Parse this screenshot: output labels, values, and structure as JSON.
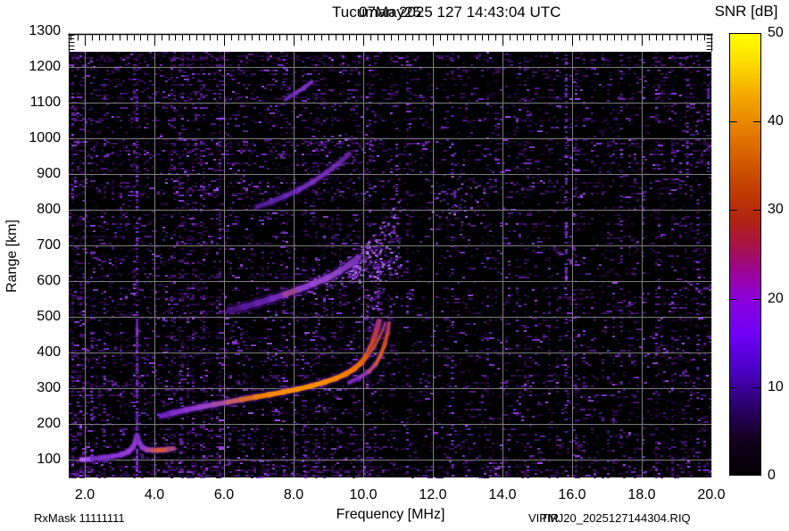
{
  "footer": {
    "left": "RxMask 11111111",
    "right_program": "VIPIR",
    "right_file": "TMJ20_2025127144304.RIQ"
  },
  "chart_data": {
    "type": "heatmap",
    "description": "VIPIR ionosonde ionogram: echo power (SNR dB) vs sounding frequency and virtual range",
    "title": {
      "main": "Tucuman 2025 127 14:43:04 UTC",
      "date": "07May25"
    },
    "station": "Tucuman",
    "timestamp_utc": "2025 127 14:43:04 UTC",
    "date_label": "07May25",
    "xlabel": "Frequency [MHz]",
    "ylabel": "Range [km]",
    "x_axis": {
      "unit": "MHz",
      "min": 1.54,
      "max": 20.03,
      "minor_step": 0.2,
      "tick_values": [
        2,
        4,
        6,
        8,
        10,
        12,
        14,
        16,
        18,
        20
      ],
      "tick_labels": [
        "2.0",
        "4.0",
        "6.0",
        "8.0",
        "10.0",
        "12.0",
        "14.0",
        "16.0",
        "18.0",
        "20.0"
      ]
    },
    "y_axis": {
      "unit": "km",
      "min": 50,
      "max": 1310,
      "minor_step": 10,
      "tick_values": [
        100,
        200,
        300,
        400,
        500,
        600,
        700,
        800,
        900,
        1000,
        1100,
        1200,
        1300
      ],
      "tick_labels": [
        "100",
        "200",
        "300",
        "400",
        "500",
        "600",
        "700",
        "800",
        "900",
        "1000",
        "1100",
        "1200",
        "1300"
      ]
    },
    "grid": {
      "x_step_mhz": 2,
      "y_step_km": 100,
      "color": "#7d7d7d"
    },
    "background": {
      "plot_bg": "#000000",
      "noise_style": "purple speckle, denser below 6 MHz and at left edge"
    },
    "colorbar": {
      "title": "SNR [dB]",
      "min": 0,
      "max": 50,
      "tick_values": [
        0,
        10,
        20,
        30,
        40,
        50
      ],
      "tick_labels": [
        "0",
        "10",
        "20",
        "30",
        "40",
        "50"
      ],
      "stops": [
        [
          0.0,
          "#000000"
        ],
        [
          0.08,
          "#12001f"
        ],
        [
          0.16,
          "#2d0070"
        ],
        [
          0.24,
          "#4c00c8"
        ],
        [
          0.32,
          "#6f00f4"
        ],
        [
          0.4,
          "#8c00d8"
        ],
        [
          0.46,
          "#9a0496"
        ],
        [
          0.52,
          "#a71347"
        ],
        [
          0.58,
          "#b22410"
        ],
        [
          0.66,
          "#c34300"
        ],
        [
          0.76,
          "#e07200"
        ],
        [
          0.86,
          "#f4a800"
        ],
        [
          0.94,
          "#fde000"
        ],
        [
          1.0,
          "#ffff00"
        ]
      ]
    },
    "traces": [
      {
        "name": "E-Es-trace-first-hop",
        "width": 4,
        "alpha": 1,
        "glow": 5,
        "points": [
          [
            1.92,
            100
          ],
          [
            2.2,
            102
          ],
          [
            2.5,
            105
          ],
          [
            2.8,
            109
          ],
          [
            3.05,
            114
          ],
          [
            3.25,
            122
          ],
          [
            3.38,
            134
          ],
          [
            3.46,
            152
          ],
          [
            3.5,
            166
          ],
          [
            3.56,
            148
          ],
          [
            3.66,
            134
          ],
          [
            3.78,
            128
          ],
          [
            3.95,
            126
          ],
          [
            4.1,
            126
          ],
          [
            4.25,
            127
          ],
          [
            4.4,
            129
          ],
          [
            4.55,
            131
          ]
        ],
        "colors": [
          "#a050e8",
          "#7a2cc8",
          "#8030cc",
          "#8834d0",
          "#9038d4",
          "#943ad4",
          "#8c36cc",
          "#8032c0",
          "#7a30b8",
          "#8436c4",
          "#9038d0",
          "#a8449c",
          "#c45548",
          "#d05a34",
          "#c85546",
          "#a8467e",
          "#8838b0"
        ]
      },
      {
        "name": "F-trace-O-mode",
        "width": 4.5,
        "alpha": 1,
        "glow": 6,
        "points": [
          [
            4.2,
            222
          ],
          [
            4.5,
            230
          ],
          [
            4.9,
            239
          ],
          [
            5.3,
            247
          ],
          [
            5.7,
            254
          ],
          [
            6.1,
            261
          ],
          [
            6.5,
            268
          ],
          [
            6.9,
            275
          ],
          [
            7.3,
            282
          ],
          [
            7.7,
            289
          ],
          [
            8.1,
            297
          ],
          [
            8.5,
            306
          ],
          [
            8.9,
            317
          ],
          [
            9.2,
            327
          ],
          [
            9.5,
            340
          ],
          [
            9.75,
            355
          ],
          [
            9.95,
            372
          ],
          [
            10.1,
            392
          ],
          [
            10.22,
            415
          ],
          [
            10.32,
            442
          ],
          [
            10.4,
            468
          ],
          [
            10.45,
            488
          ]
        ],
        "colors": [
          "#6f22c4",
          "#7e2ccc",
          "#8c36cc",
          "#9840c4",
          "#a84aa8",
          "#c05a6a",
          "#d86a28",
          "#ef7d06",
          "#f68804",
          "#f98e02",
          "#fa9000",
          "#f98c00",
          "#f78700",
          "#f48200",
          "#f07a00",
          "#ea7000",
          "#e26206",
          "#d85510",
          "#cc4720",
          "#bc3a38",
          "#a63468",
          "#8e3694"
        ]
      },
      {
        "name": "F-trace-X-mode",
        "width": 3,
        "alpha": 0.95,
        "glow": 5,
        "points": [
          [
            9.6,
            316
          ],
          [
            9.9,
            330
          ],
          [
            10.15,
            346
          ],
          [
            10.35,
            366
          ],
          [
            10.5,
            392
          ],
          [
            10.62,
            424
          ],
          [
            10.7,
            456
          ],
          [
            10.74,
            482
          ]
        ],
        "colors": [
          "#7a2ac0",
          "#9038b0",
          "#b04a70",
          "#cc5530",
          "#d85a14",
          "#cc4a20",
          "#b03a50",
          "#903a88"
        ]
      },
      {
        "name": "F-cusp-middle-branch",
        "width": 2,
        "alpha": 0.9,
        "glow": 4,
        "points": [
          [
            10.18,
            398
          ],
          [
            10.33,
            418
          ],
          [
            10.46,
            442
          ],
          [
            10.57,
            465
          ],
          [
            10.63,
            482
          ]
        ],
        "colors": [
          "#c04a30",
          "#b84430",
          "#a83c48",
          "#943a6a",
          "#7c3490"
        ]
      },
      {
        "name": "second-hop-F-trace",
        "width": 5.5,
        "alpha": 0.8,
        "glow": 8,
        "points": [
          [
            6.15,
            518
          ],
          [
            6.55,
            527
          ],
          [
            6.95,
            538
          ],
          [
            7.35,
            550
          ],
          [
            7.75,
            563
          ],
          [
            8.15,
            577
          ],
          [
            8.55,
            592
          ],
          [
            8.95,
            608
          ],
          [
            9.3,
            626
          ],
          [
            9.6,
            646
          ],
          [
            9.85,
            666
          ]
        ],
        "colors": [
          "#4a1688",
          "#5a1da0",
          "#6a24b4",
          "#7a2cc4",
          "#a44a96",
          "#9240d4",
          "#9a48d0",
          "#9448c8",
          "#8840c0",
          "#7a36b4",
          "#6c2ea4"
        ]
      },
      {
        "name": "third-hop-F-trace",
        "width": 4,
        "alpha": 0.8,
        "glow": 6,
        "points": [
          [
            6.95,
            808
          ],
          [
            7.35,
            822
          ],
          [
            7.75,
            838
          ],
          [
            8.15,
            856
          ],
          [
            8.55,
            878
          ],
          [
            8.95,
            904
          ],
          [
            9.3,
            930
          ],
          [
            9.6,
            956
          ]
        ],
        "colors": [
          "#581fa0",
          "#6226ac",
          "#6c2cb8",
          "#762fc0",
          "#7a30c0",
          "#7230b4",
          "#6828a4",
          "#5c2494"
        ]
      },
      {
        "name": "fourth-hop-faint-trace",
        "width": 3,
        "alpha": 0.85,
        "glow": 4,
        "points": [
          [
            7.78,
            1110
          ],
          [
            8.05,
            1126
          ],
          [
            8.3,
            1142
          ],
          [
            8.52,
            1158
          ]
        ],
        "colors": [
          "#6c2cb4",
          "#7a34c4",
          "#7a34c4",
          "#6c2cb4"
        ]
      }
    ],
    "rfi_streaks": [
      {
        "f": 3.49,
        "r0": 55,
        "r1": 500,
        "strength": 0.8
      },
      {
        "f": 3.49,
        "r0": 500,
        "r1": 1235,
        "strength": 0.16
      },
      {
        "f": 2.2,
        "r0": 55,
        "r1": 530,
        "strength": 0.25
      },
      {
        "f": 2.55,
        "r0": 55,
        "r1": 530,
        "strength": 0.3
      },
      {
        "f": 4.75,
        "r0": 55,
        "r1": 420,
        "strength": 0.22
      },
      {
        "f": 5.1,
        "r0": 55,
        "r1": 300,
        "strength": 0.15
      },
      {
        "f": 6.15,
        "r0": 55,
        "r1": 250,
        "strength": 0.15
      },
      {
        "f": 6.55,
        "r0": 55,
        "r1": 300,
        "strength": 0.12
      },
      {
        "f": 7.7,
        "r0": 55,
        "r1": 1235,
        "strength": 0.06
      },
      {
        "f": 8.3,
        "r0": 55,
        "r1": 200,
        "strength": 0.2
      },
      {
        "f": 10.42,
        "r0": 515,
        "r1": 665,
        "strength": 0.6
      },
      {
        "f": 10.95,
        "r0": 840,
        "r1": 1070,
        "strength": 0.2
      },
      {
        "f": 12.55,
        "r0": 55,
        "r1": 1235,
        "strength": 0.1
      },
      {
        "f": 12.62,
        "r0": 760,
        "r1": 960,
        "strength": 0.25
      },
      {
        "f": 13.95,
        "r0": 55,
        "r1": 1235,
        "strength": 0.07
      },
      {
        "f": 15.82,
        "r0": 600,
        "r1": 1235,
        "strength": 0.4
      },
      {
        "f": 15.82,
        "r0": 55,
        "r1": 600,
        "strength": 0.15
      },
      {
        "f": 16.05,
        "r0": 55,
        "r1": 1235,
        "strength": 0.08
      },
      {
        "f": 17.4,
        "r0": 55,
        "r1": 1235,
        "strength": 0.08
      },
      {
        "f": 18.05,
        "r0": 55,
        "r1": 1235,
        "strength": 0.07
      },
      {
        "f": 19.3,
        "r0": 880,
        "r1": 1230,
        "strength": 0.22
      },
      {
        "f": 19.6,
        "r0": 55,
        "r1": 1235,
        "strength": 0.12
      },
      {
        "f": 19.9,
        "r0": 900,
        "r1": 1235,
        "strength": 0.25
      }
    ],
    "clouds": [
      {
        "name": "spread-F-cloud-second-hop",
        "f0": 9.55,
        "f1": 11.05,
        "rlow0": 595,
        "rhigh0": 640,
        "rlow1": 605,
        "rhigh1": 835,
        "density": 0.5
      },
      {
        "name": "diffuse-above-second-hop",
        "f0": 8.2,
        "f1": 9.9,
        "rlow0": 556,
        "rhigh0": 598,
        "rlow1": 600,
        "rhigh1": 690,
        "density": 0.18
      },
      {
        "name": "faint-patch-12-13MHz",
        "f0": 11.7,
        "f1": 13.6,
        "rlow0": 750,
        "rhigh0": 900,
        "rlow1": 760,
        "rhigh1": 905,
        "density": 0.07
      },
      {
        "name": "faint-patch-9-10MHz-high",
        "f0": 8.6,
        "f1": 10.3,
        "rlow0": 880,
        "rhigh0": 1010,
        "rlow1": 900,
        "rhigh1": 1030,
        "density": 0.06
      },
      {
        "name": "spread-near-F-cusp",
        "f0": 10.05,
        "f1": 10.9,
        "rlow0": 470,
        "rhigh0": 560,
        "rlow1": 480,
        "rhigh1": 600,
        "density": 0.12
      }
    ]
  }
}
